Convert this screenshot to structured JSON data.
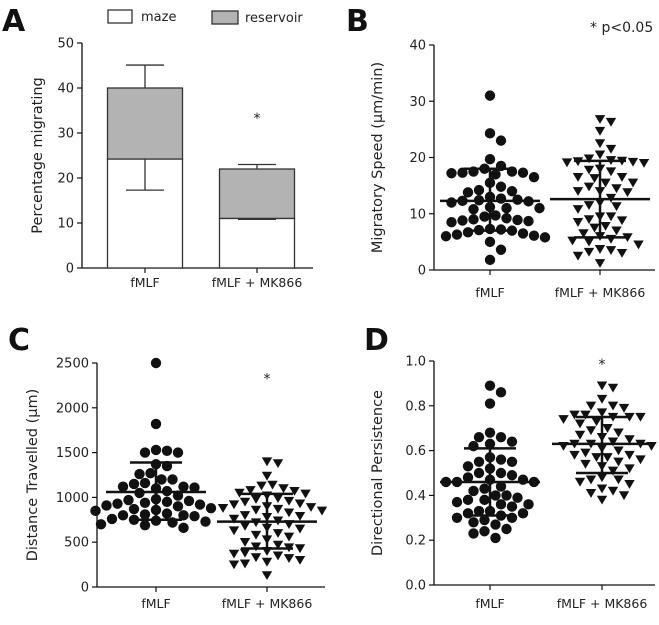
{
  "chart_data": [
    {
      "panel": "A",
      "type": "bar",
      "stacked": true,
      "ylabel": "Percentage migrating",
      "ylim": [
        0,
        50
      ],
      "yticks": [
        0,
        10,
        20,
        30,
        40,
        50
      ],
      "categories": [
        "fMLF",
        "fMLF + MK866"
      ],
      "series": [
        {
          "name": "maze",
          "color": "#ffffff",
          "values": [
            24.2,
            11.0
          ],
          "error_low": [
            17.3,
            10.8
          ]
        },
        {
          "name": "reservoir",
          "color": "#b3b3b3",
          "values": [
            15.8,
            11.0
          ],
          "error_high": [
            45.1,
            23.0
          ]
        }
      ],
      "annotations": [
        {
          "text": "*",
          "category": "fMLF + MK866",
          "y": 34
        }
      ]
    },
    {
      "panel": "B",
      "type": "scatter",
      "ylabel": "Migratory Speed (μm/min)",
      "ylim": [
        0,
        40
      ],
      "yticks": [
        0,
        10,
        20,
        30,
        40
      ],
      "categories": [
        "fMLF",
        "fMLF + MK866"
      ],
      "note": "* p<0.05",
      "groups": [
        {
          "name": "fMLF",
          "marker": "circle",
          "mean": 12.3,
          "sd_low": 7.0,
          "sd_high": 18.0,
          "values": [
            31,
            24.3,
            23,
            19.7,
            18.5,
            18,
            17.5,
            17.3,
            17.2,
            17,
            17.3,
            17.5,
            16.5,
            15.5,
            14.8,
            14,
            13.8,
            14.2,
            13,
            12.7,
            12.5,
            12.3,
            12.2,
            12,
            12.4,
            11,
            11.2,
            10.8,
            11,
            9.7,
            9.5,
            9,
            9.2,
            8.7,
            8.8,
            8.5,
            8.9,
            7.2,
            7.3,
            7,
            7.1,
            6.5,
            6.3,
            6,
            6.1,
            5.8,
            6.7,
            5,
            3.6,
            1.8
          ]
        },
        {
          "name": "fMLF + MK866",
          "marker": "triangle-down",
          "mean": 12.6,
          "sd_low": 5.8,
          "sd_high": 19.4,
          "values": [
            26.8,
            26.3,
            24.7,
            22.5,
            21.5,
            20.5,
            19.8,
            19.5,
            19.4,
            19.2,
            19.1,
            19,
            19.3,
            18,
            17.8,
            17.5,
            16.5,
            16.3,
            16.5,
            15.5,
            15.5,
            14.8,
            14.5,
            14,
            13.8,
            14,
            12.8,
            12,
            11.5,
            11.3,
            10.8,
            9.5,
            9.5,
            9,
            8.8,
            8.5,
            7.8,
            7.5,
            7,
            6.5,
            6,
            5.8,
            5.5,
            5.2,
            5,
            4.5,
            3.7,
            3.5,
            3.2,
            3,
            2.5,
            1.2
          ]
        }
      ]
    },
    {
      "panel": "C",
      "type": "scatter",
      "ylabel": "Distance Travelled (μm)",
      "ylim": [
        0,
        2500
      ],
      "yticks": [
        0,
        500,
        1000,
        1500,
        2000,
        2500
      ],
      "categories": [
        "fMLF",
        "fMLF + MK866"
      ],
      "annotations": [
        {
          "text": "*",
          "category": "fMLF + MK866",
          "y": 2360
        }
      ],
      "groups": [
        {
          "name": "fMLF",
          "marker": "circle",
          "mean": 1060,
          "sd_low": 750,
          "sd_high": 1390,
          "values": [
            2500,
            1820,
            1530,
            1520,
            1500,
            1500,
            1370,
            1350,
            1270,
            1260,
            1200,
            1200,
            1160,
            1150,
            1120,
            1120,
            1110,
            1100,
            1070,
            1050,
            1020,
            980,
            970,
            960,
            950,
            940,
            930,
            920,
            910,
            900,
            880,
            870,
            860,
            850,
            820,
            810,
            800,
            800,
            790,
            760,
            750,
            740,
            730,
            720,
            700,
            690,
            660
          ]
        },
        {
          "name": "fMLF + MK866",
          "marker": "triangle-down",
          "mean": 730,
          "sd_low": 430,
          "sd_high": 1040,
          "values": [
            1400,
            1380,
            1240,
            1140,
            1130,
            1100,
            1080,
            1070,
            1050,
            1040,
            1020,
            990,
            980,
            960,
            950,
            930,
            920,
            900,
            890,
            880,
            870,
            860,
            850,
            830,
            800,
            790,
            780,
            760,
            740,
            720,
            700,
            680,
            660,
            650,
            630,
            600,
            580,
            560,
            530,
            500,
            470,
            450,
            440,
            430,
            400,
            380,
            370,
            350,
            330,
            320,
            300,
            280,
            260,
            250,
            130
          ]
        }
      ]
    },
    {
      "panel": "D",
      "type": "scatter",
      "ylabel": "Directional Persistence",
      "ylim": [
        0,
        1.0
      ],
      "yticks": [
        "0.0",
        "0.2",
        "0.4",
        "0.6",
        "0.8",
        "1.0"
      ],
      "categories": [
        "fMLF",
        "fMLF + MK866"
      ],
      "annotations": [
        {
          "text": "*",
          "category": "fMLF + MK866",
          "y": 1.0
        }
      ],
      "groups": [
        {
          "name": "fMLF",
          "marker": "circle",
          "mean": 0.46,
          "sd_low": 0.31,
          "sd_high": 0.61,
          "values": [
            0.89,
            0.86,
            0.81,
            0.68,
            0.66,
            0.66,
            0.64,
            0.63,
            0.62,
            0.57,
            0.56,
            0.55,
            0.55,
            0.53,
            0.52,
            0.5,
            0.5,
            0.49,
            0.48,
            0.47,
            0.47,
            0.46,
            0.46,
            0.46,
            0.44,
            0.43,
            0.42,
            0.4,
            0.4,
            0.39,
            0.38,
            0.38,
            0.37,
            0.36,
            0.36,
            0.35,
            0.33,
            0.33,
            0.32,
            0.32,
            0.31,
            0.3,
            0.3,
            0.29,
            0.28,
            0.27,
            0.25,
            0.24,
            0.23,
            0.21
          ]
        },
        {
          "name": "fMLF + MK866",
          "marker": "triangle-down",
          "mean": 0.63,
          "sd_low": 0.5,
          "sd_high": 0.75,
          "values": [
            0.89,
            0.88,
            0.83,
            0.8,
            0.8,
            0.79,
            0.77,
            0.76,
            0.76,
            0.75,
            0.75,
            0.75,
            0.74,
            0.73,
            0.72,
            0.7,
            0.69,
            0.68,
            0.67,
            0.66,
            0.65,
            0.64,
            0.63,
            0.63,
            0.63,
            0.62,
            0.62,
            0.61,
            0.6,
            0.59,
            0.58,
            0.58,
            0.57,
            0.57,
            0.56,
            0.55,
            0.54,
            0.53,
            0.52,
            0.51,
            0.48,
            0.47,
            0.47,
            0.46,
            0.45,
            0.43,
            0.42,
            0.41,
            0.4,
            0.38
          ]
        }
      ]
    }
  ],
  "colors": {
    "ink": "#111111",
    "reservoir": "#b3b3b3",
    "maze": "#ffffff"
  }
}
